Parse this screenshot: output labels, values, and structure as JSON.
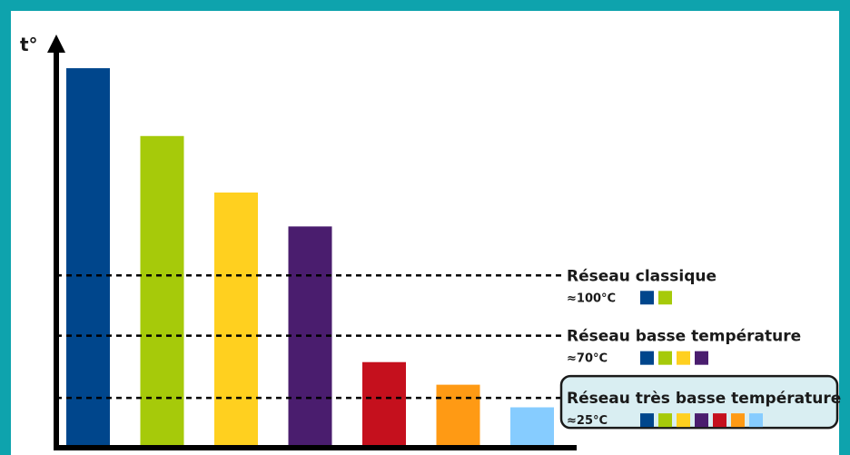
{
  "chart_data": {
    "type": "bar",
    "ylabel": "t°",
    "colors": [
      "#00468c",
      "#a6ca0a",
      "#ffd01f",
      "#4a1d6e",
      "#c5101d",
      "#ff9a14",
      "#86ccff"
    ],
    "values": [
      100,
      82,
      67,
      58,
      22,
      16,
      10
    ],
    "ylim": [
      0,
      114
    ],
    "grid": false,
    "thresholds": [
      {
        "label": "Réseau classique",
        "temp": "≈100°C",
        "level": 45,
        "swatches": 2,
        "highlight": false
      },
      {
        "label": "Réseau basse température",
        "temp": "≈70°C",
        "level": 29,
        "swatches": 4,
        "highlight": false
      },
      {
        "label": "Réseau très basse température",
        "temp": "≈25°C",
        "level": 12.5,
        "swatches": 7,
        "highlight": true
      }
    ]
  }
}
